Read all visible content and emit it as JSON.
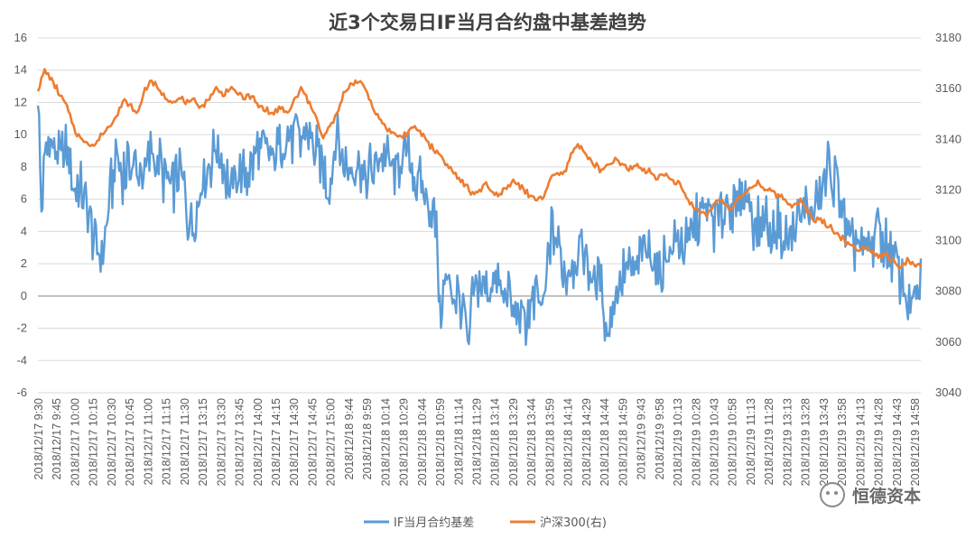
{
  "chart_data": {
    "type": "line",
    "title": "近3个交易日IF当月合约盘中基差趋势",
    "y_left": {
      "min": -6,
      "max": 16,
      "ticks": [
        16,
        14,
        12,
        10,
        8,
        6,
        4,
        2,
        0,
        -2,
        -4,
        -6
      ],
      "tick_labels": [
        "16",
        "14",
        "12",
        "10",
        "8",
        "6",
        "4",
        "2",
        "0",
        "-2",
        "-4",
        "-6"
      ]
    },
    "y_right": {
      "min": 3040,
      "max": 3180,
      "ticks": [
        3180,
        3160,
        3140,
        3120,
        3100,
        3080,
        3060,
        3040
      ],
      "tick_labels": [
        "3180",
        "3160",
        "3140",
        "3120",
        "3100",
        "3080",
        "3060",
        "3040"
      ]
    },
    "x_tick_labels": [
      "2018/12/17 9:30",
      "2018/12/17 9:45",
      "2018/12/17 10:00",
      "2018/12/17 10:15",
      "2018/12/17 10:30",
      "2018/12/17 10:45",
      "2018/12/17 11:00",
      "2018/12/17 11:15",
      "2018/12/17 11:30",
      "2018/12/17 13:15",
      "2018/12/17 13:30",
      "2018/12/17 13:45",
      "2018/12/17 14:00",
      "2018/12/17 14:15",
      "2018/12/17 14:30",
      "2018/12/17 14:45",
      "2018/12/17 15:00",
      "2018/12/18 9:44",
      "2018/12/18 9:59",
      "2018/12/18 10:14",
      "2018/12/18 10:29",
      "2018/12/18 10:44",
      "2018/12/18 10:59",
      "2018/12/18 11:14",
      "2018/12/18 11:29",
      "2018/12/18 13:14",
      "2018/12/18 13:29",
      "2018/12/18 13:44",
      "2018/12/18 13:59",
      "2018/12/18 14:14",
      "2018/12/18 14:29",
      "2018/12/18 14:44",
      "2018/12/18 14:59",
      "2018/12/19 9:43",
      "2018/12/19 9:58",
      "2018/12/19 10:13",
      "2018/12/19 10:28",
      "2018/12/19 10:43",
      "2018/12/19 10:58",
      "2018/12/19 11:13",
      "2018/12/19 11:28",
      "2018/12/19 13:13",
      "2018/12/19 13:28",
      "2018/12/19 13:43",
      "2018/12/19 13:58",
      "2018/12/19 14:13",
      "2018/12/19 14:28",
      "2018/12/19 14:43",
      "2018/12/19 14:58"
    ],
    "series": [
      {
        "name": "IF当月合约基差",
        "axis": "left",
        "color": "#5B9BD5",
        "anchors": [
          [
            0,
            12.8
          ],
          [
            0.5,
            5.5
          ],
          [
            1,
            9.0
          ],
          [
            2,
            9.8
          ],
          [
            3,
            8.5
          ],
          [
            4,
            9.0
          ],
          [
            5,
            7.0
          ],
          [
            6,
            6.5
          ],
          [
            7,
            5.0
          ],
          [
            8,
            3.0
          ],
          [
            9,
            2.5
          ],
          [
            10,
            6.0
          ],
          [
            11,
            8.5
          ],
          [
            12,
            7.5
          ],
          [
            13,
            8.5
          ],
          [
            14,
            7.5
          ],
          [
            15,
            8.0
          ],
          [
            16,
            9.0
          ],
          [
            17,
            8.0
          ],
          [
            18,
            7.5
          ],
          [
            19,
            6.5
          ],
          [
            20,
            8.0
          ],
          [
            21,
            5.0
          ],
          [
            22,
            4.5
          ],
          [
            23,
            7.5
          ],
          [
            24,
            8.0
          ],
          [
            25,
            9.5
          ],
          [
            26,
            8.5
          ],
          [
            27,
            6.5
          ],
          [
            28,
            8.0
          ],
          [
            29,
            7.5
          ],
          [
            30,
            8.0
          ],
          [
            31,
            9.5
          ],
          [
            32,
            9.0
          ],
          [
            33,
            8.5
          ],
          [
            34,
            9.5
          ],
          [
            35,
            10.0
          ],
          [
            36,
            10.0
          ],
          [
            37,
            9.5
          ],
          [
            38,
            10.5
          ],
          [
            39,
            9.0
          ],
          [
            40,
            8.0
          ],
          [
            41,
            6.5
          ],
          [
            42,
            10.0
          ],
          [
            43,
            8.0
          ],
          [
            44,
            7.5
          ],
          [
            45,
            8.5
          ],
          [
            46,
            7.0
          ],
          [
            47,
            8.0
          ],
          [
            48,
            9.0
          ],
          [
            49,
            8.5
          ],
          [
            50,
            7.5
          ],
          [
            51,
            8.5
          ],
          [
            52,
            9.0
          ],
          [
            53,
            7.0
          ],
          [
            54,
            6.5
          ],
          [
            55,
            6.0
          ],
          [
            56,
            4.0
          ],
          [
            56.5,
            -1.5
          ],
          [
            57,
            1.0
          ],
          [
            58,
            0.5
          ],
          [
            59,
            0.0
          ],
          [
            60,
            -1.0
          ],
          [
            60.5,
            -4.0
          ],
          [
            61,
            0.5
          ],
          [
            62,
            0.5
          ],
          [
            63,
            0.0
          ],
          [
            64,
            1.0
          ],
          [
            65,
            0.5
          ],
          [
            66,
            0.0
          ],
          [
            67,
            -1.0
          ],
          [
            68,
            -1.0
          ],
          [
            69,
            -1.5
          ],
          [
            70,
            0.0
          ],
          [
            71,
            -1.0
          ],
          [
            72,
            4.0
          ],
          [
            73,
            3.5
          ],
          [
            74,
            1.5
          ],
          [
            75,
            2.0
          ],
          [
            76,
            3.0
          ],
          [
            77,
            2.5
          ],
          [
            78,
            0.5
          ],
          [
            79,
            1.0
          ],
          [
            80,
            -2.5
          ],
          [
            81,
            0.5
          ],
          [
            82,
            1.0
          ],
          [
            83,
            1.5
          ],
          [
            84,
            2.0
          ],
          [
            85,
            2.5
          ],
          [
            86,
            3.0
          ],
          [
            87,
            1.0
          ],
          [
            88,
            2.5
          ],
          [
            89,
            3.0
          ],
          [
            90,
            3.5
          ],
          [
            91,
            3.0
          ],
          [
            92,
            4.0
          ],
          [
            93,
            5.0
          ],
          [
            94,
            5.5
          ],
          [
            95,
            4.5
          ],
          [
            96,
            5.0
          ],
          [
            97,
            6.0
          ],
          [
            98,
            5.0
          ],
          [
            99,
            6.0
          ],
          [
            100,
            5.5
          ],
          [
            101,
            4.0
          ],
          [
            102,
            5.0
          ],
          [
            103,
            4.0
          ],
          [
            104,
            4.5
          ],
          [
            105,
            3.5
          ],
          [
            106,
            4.0
          ],
          [
            107,
            5.0
          ],
          [
            108,
            5.5
          ],
          [
            109,
            5.0
          ],
          [
            110,
            6.5
          ],
          [
            111,
            8.0
          ],
          [
            112,
            7.0
          ],
          [
            113,
            5.5
          ],
          [
            114,
            3.0
          ],
          [
            115,
            3.5
          ],
          [
            116,
            2.5
          ],
          [
            117,
            3.0
          ],
          [
            118,
            4.5
          ],
          [
            119,
            3.0
          ],
          [
            120,
            2.5
          ],
          [
            121,
            1.5
          ],
          [
            122,
            -0.5
          ],
          [
            123,
            -1.0
          ],
          [
            124,
            0.5
          ]
        ]
      },
      {
        "name": "沪深300(右)",
        "axis": "right",
        "color": "#ED7D31",
        "anchors": [
          [
            0,
            3160
          ],
          [
            1,
            3167
          ],
          [
            2,
            3163
          ],
          [
            3,
            3158
          ],
          [
            4,
            3153
          ],
          [
            5,
            3145
          ],
          [
            6,
            3140
          ],
          [
            7,
            3139
          ],
          [
            8,
            3137
          ],
          [
            9,
            3142
          ],
          [
            10,
            3145
          ],
          [
            11,
            3150
          ],
          [
            12,
            3155
          ],
          [
            13,
            3153
          ],
          [
            14,
            3150
          ],
          [
            15,
            3160
          ],
          [
            16,
            3163
          ],
          [
            17,
            3159
          ],
          [
            18,
            3156
          ],
          [
            19,
            3155
          ],
          [
            20,
            3156
          ],
          [
            21,
            3154
          ],
          [
            22,
            3155
          ],
          [
            23,
            3153
          ],
          [
            24,
            3156
          ],
          [
            25,
            3160
          ],
          [
            26,
            3158
          ],
          [
            27,
            3160
          ],
          [
            28,
            3158
          ],
          [
            29,
            3156
          ],
          [
            30,
            3157
          ],
          [
            31,
            3153
          ],
          [
            32,
            3152
          ],
          [
            33,
            3150
          ],
          [
            34,
            3152
          ],
          [
            35,
            3150
          ],
          [
            36,
            3155
          ],
          [
            37,
            3160
          ],
          [
            38,
            3155
          ],
          [
            39,
            3150
          ],
          [
            40,
            3140
          ],
          [
            41,
            3145
          ],
          [
            42,
            3150
          ],
          [
            43,
            3158
          ],
          [
            44,
            3162
          ],
          [
            45,
            3163
          ],
          [
            46,
            3160
          ],
          [
            47,
            3153
          ],
          [
            48,
            3148
          ],
          [
            49,
            3144
          ],
          [
            50,
            3142
          ],
          [
            51,
            3141
          ],
          [
            52,
            3143
          ],
          [
            53,
            3145
          ],
          [
            54,
            3142
          ],
          [
            55,
            3138
          ],
          [
            56,
            3135
          ],
          [
            57,
            3132
          ],
          [
            58,
            3128
          ],
          [
            59,
            3125
          ],
          [
            60,
            3122
          ],
          [
            61,
            3118
          ],
          [
            62,
            3120
          ],
          [
            63,
            3122
          ],
          [
            64,
            3118
          ],
          [
            65,
            3119
          ],
          [
            66,
            3121
          ],
          [
            67,
            3124
          ],
          [
            68,
            3121
          ],
          [
            69,
            3118
          ],
          [
            70,
            3116
          ],
          [
            71,
            3117
          ],
          [
            72,
            3125
          ],
          [
            73,
            3126
          ],
          [
            74,
            3127
          ],
          [
            75,
            3135
          ],
          [
            76,
            3138
          ],
          [
            77,
            3134
          ],
          [
            78,
            3130
          ],
          [
            79,
            3128
          ],
          [
            80,
            3129
          ],
          [
            81,
            3132
          ],
          [
            82,
            3130
          ],
          [
            83,
            3128
          ],
          [
            84,
            3130
          ],
          [
            85,
            3128
          ],
          [
            86,
            3127
          ],
          [
            87,
            3125
          ],
          [
            88,
            3126
          ],
          [
            89,
            3124
          ],
          [
            90,
            3122
          ],
          [
            91,
            3118
          ],
          [
            92,
            3113
          ],
          [
            93,
            3112
          ],
          [
            94,
            3110
          ],
          [
            95,
            3115
          ],
          [
            96,
            3117
          ],
          [
            97,
            3112
          ],
          [
            98,
            3115
          ],
          [
            99,
            3118
          ],
          [
            100,
            3121
          ],
          [
            101,
            3123
          ],
          [
            102,
            3121
          ],
          [
            103,
            3119
          ],
          [
            104,
            3118
          ],
          [
            105,
            3116
          ],
          [
            106,
            3114
          ],
          [
            107,
            3116
          ],
          [
            108,
            3112
          ],
          [
            109,
            3108
          ],
          [
            110,
            3108
          ],
          [
            111,
            3106
          ],
          [
            112,
            3103
          ],
          [
            113,
            3101
          ],
          [
            114,
            3098
          ],
          [
            115,
            3097
          ],
          [
            116,
            3098
          ],
          [
            117,
            3096
          ],
          [
            118,
            3094
          ],
          [
            119,
            3095
          ],
          [
            120,
            3092
          ],
          [
            121,
            3089
          ],
          [
            122,
            3092
          ],
          [
            123,
            3091
          ],
          [
            124,
            3090
          ]
        ]
      }
    ],
    "legend": {
      "position": "bottom-center"
    }
  },
  "watermark": {
    "text": "恒德资本"
  }
}
